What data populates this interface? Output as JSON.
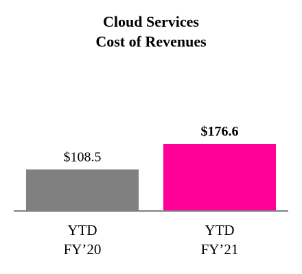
{
  "chart_data": {
    "type": "bar",
    "title": [
      "Cloud Services",
      "Cost of Revenues"
    ],
    "categories": [
      [
        "YTD",
        "FY’20"
      ],
      [
        "YTD",
        "FY’21"
      ]
    ],
    "values": [
      108.5,
      176.6
    ],
    "value_labels": [
      "$108.5",
      "$176.6"
    ],
    "value_label_bold": [
      false,
      true
    ],
    "colors": [
      "#808080",
      "#ff0098"
    ],
    "axis_color": "#7f7f7f",
    "ylim": [
      0,
      176.6
    ],
    "xlabel": "",
    "ylabel": "",
    "grid": false,
    "legend": "none"
  }
}
